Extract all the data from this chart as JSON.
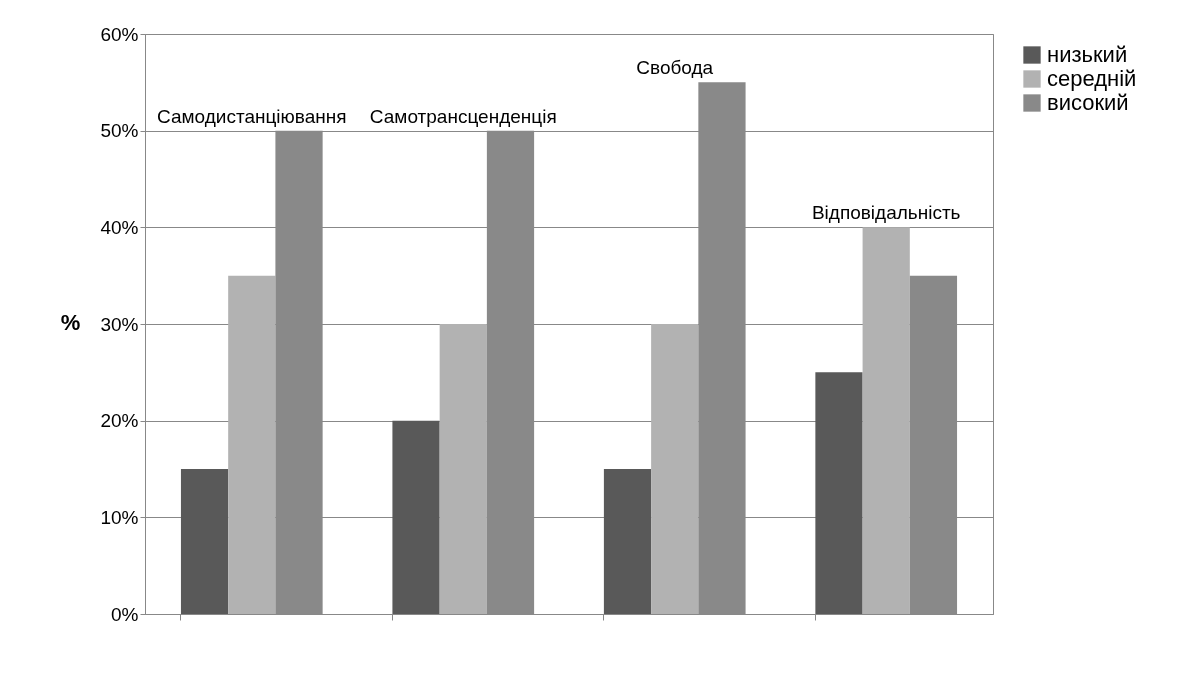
{
  "chart_data": {
    "type": "bar",
    "ylabel": "%",
    "categories": [
      "Самодистанціювання",
      "Самотрансценденція",
      "Свобода",
      "Відповідальність"
    ],
    "series": [
      {
        "name": "низький",
        "color": "#595959",
        "values": [
          15,
          20,
          15,
          25
        ]
      },
      {
        "name": "середній",
        "color": "#b2b2b2",
        "values": [
          35,
          30,
          30,
          40
        ]
      },
      {
        "name": "високий",
        "color": "#898989",
        "values": [
          50,
          50,
          55,
          35
        ]
      }
    ],
    "ylim": [
      0,
      60
    ],
    "yticks": [
      {
        "value": 0,
        "label": "0%"
      },
      {
        "value": 10,
        "label": "10%"
      },
      {
        "value": 20,
        "label": "20%"
      },
      {
        "value": 30,
        "label": "30%"
      },
      {
        "value": 40,
        "label": "40%"
      },
      {
        "value": 50,
        "label": "50%"
      },
      {
        "value": 60,
        "label": "60%"
      }
    ],
    "grid": "y",
    "legend": "right",
    "tick_labels": "y"
  }
}
